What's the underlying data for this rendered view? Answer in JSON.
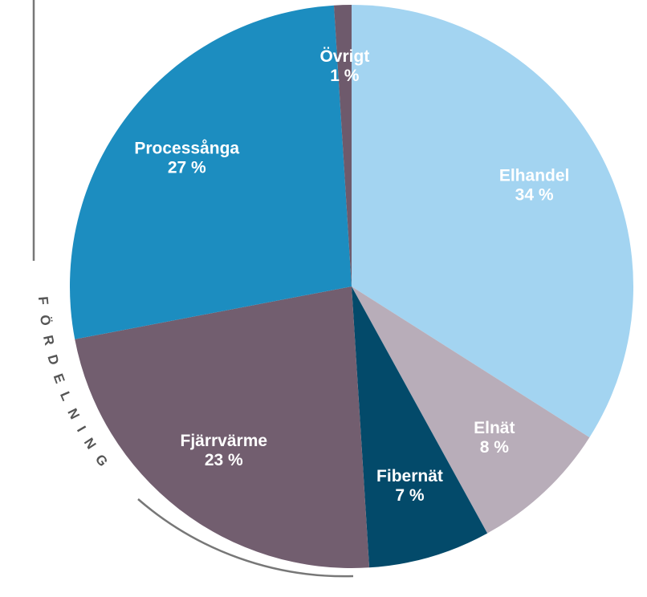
{
  "chart_data": {
    "type": "pie",
    "annotation": "FÖRDELNING",
    "categories": [
      "Elhandel",
      "Elnät",
      "Fibernät",
      "Fjärrvärme",
      "Processånga",
      "Övrigt"
    ],
    "values": [
      34,
      8,
      7,
      23,
      27,
      1
    ],
    "value_labels": [
      "34 %",
      "8 %",
      "7 %",
      "23 %",
      "27 %",
      "1 %"
    ],
    "colors": [
      "#a3d4f1",
      "#b8adb9",
      "#034a6a",
      "#725e6f",
      "#1c8dc0",
      "#6e5a6c"
    ]
  }
}
